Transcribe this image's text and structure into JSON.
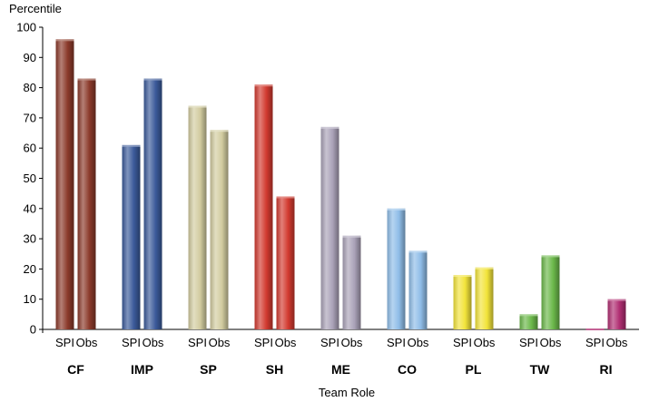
{
  "chart_data": {
    "type": "bar",
    "title": "",
    "ylabel": "Percentile",
    "xlabel": "Team Role",
    "ylim": [
      0,
      100
    ],
    "yticks": [
      0,
      10,
      20,
      30,
      40,
      50,
      60,
      70,
      80,
      90,
      100
    ],
    "grid": false,
    "legend": "none",
    "subcategories": [
      "SPI",
      "Obs"
    ],
    "categories": [
      {
        "name": "CF",
        "color": "#8b3a2b",
        "values": [
          96,
          83
        ]
      },
      {
        "name": "IMP",
        "color": "#3b5a9a",
        "values": [
          61,
          83
        ]
      },
      {
        "name": "SP",
        "color": "#d2cca0",
        "values": [
          74,
          66
        ]
      },
      {
        "name": "SH",
        "color": "#d23a30",
        "values": [
          81,
          44
        ]
      },
      {
        "name": "ME",
        "color": "#aaa2b8",
        "values": [
          67,
          31
        ]
      },
      {
        "name": "CO",
        "color": "#8fbde8",
        "values": [
          40,
          26
        ]
      },
      {
        "name": "PL",
        "color": "#f2e43a",
        "values": [
          18,
          20.5
        ]
      },
      {
        "name": "TW",
        "color": "#6bb84a",
        "values": [
          5,
          24.5
        ]
      },
      {
        "name": "RI",
        "color": "#b02e72",
        "values": [
          0,
          10
        ]
      }
    ]
  }
}
